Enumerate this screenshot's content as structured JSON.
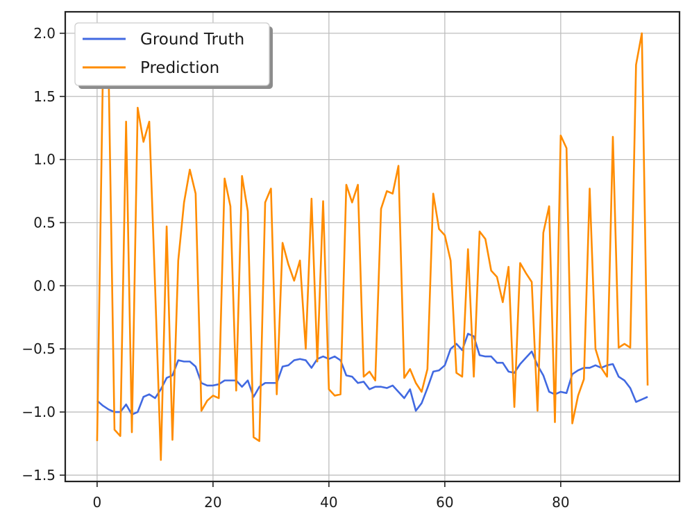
{
  "chart_data": {
    "type": "line",
    "title": "",
    "xlabel": "",
    "ylabel": "",
    "xlim": [
      -5.5,
      100.5
    ],
    "ylim": [
      -1.55,
      2.17
    ],
    "grid": true,
    "legend_position": "top-left",
    "x_ticks": [
      0,
      20,
      40,
      60,
      80
    ],
    "y_ticks": [
      -1.5,
      -1.0,
      -0.5,
      0.0,
      0.5,
      1.0,
      1.5,
      2.0
    ],
    "x_tick_labels": [
      "0",
      "20",
      "40",
      "60",
      "80"
    ],
    "y_tick_labels": [
      "−1.5",
      "−1.0",
      "−0.5",
      "0.0",
      "0.5",
      "1.0",
      "1.5",
      "2.0"
    ],
    "series": [
      {
        "name": "Ground Truth",
        "color": "#4169E1",
        "values": [
          -0.91,
          -0.95,
          -0.98,
          -1.0,
          -1.0,
          -0.94,
          -1.02,
          -1.0,
          -0.88,
          -0.86,
          -0.89,
          -0.82,
          -0.73,
          -0.71,
          -0.59,
          -0.6,
          -0.6,
          -0.64,
          -0.77,
          -0.79,
          -0.79,
          -0.78,
          -0.75,
          -0.75,
          -0.75,
          -0.8,
          -0.75,
          -0.88,
          -0.8,
          -0.77,
          -0.77,
          -0.77,
          -0.64,
          -0.63,
          -0.59,
          -0.58,
          -0.59,
          -0.65,
          -0.58,
          -0.56,
          -0.58,
          -0.56,
          -0.59,
          -0.71,
          -0.72,
          -0.77,
          -0.76,
          -0.82,
          -0.8,
          -0.8,
          -0.81,
          -0.79,
          -0.84,
          -0.89,
          -0.82,
          -0.99,
          -0.93,
          -0.81,
          -0.68,
          -0.67,
          -0.63,
          -0.5,
          -0.46,
          -0.51,
          -0.38,
          -0.4,
          -0.55,
          -0.56,
          -0.56,
          -0.61,
          -0.61,
          -0.68,
          -0.69,
          -0.62,
          -0.57,
          -0.52,
          -0.63,
          -0.71,
          -0.84,
          -0.86,
          -0.84,
          -0.85,
          -0.7,
          -0.67,
          -0.65,
          -0.65,
          -0.63,
          -0.65,
          -0.63,
          -0.62,
          -0.72,
          -0.75,
          -0.81,
          -0.92,
          -0.9,
          -0.88
        ]
      },
      {
        "name": "Prediction",
        "color": "#FF8C00",
        "values": [
          -1.23,
          1.7,
          1.65,
          -1.14,
          -1.19,
          1.3,
          -1.16,
          1.41,
          1.14,
          1.3,
          0.0,
          -1.38,
          0.47,
          -1.22,
          0.2,
          0.66,
          0.92,
          0.73,
          -0.99,
          -0.91,
          -0.87,
          -0.89,
          0.85,
          0.63,
          -0.83,
          0.87,
          0.59,
          -1.2,
          -1.23,
          0.66,
          0.77,
          -0.86,
          0.34,
          0.17,
          0.04,
          0.2,
          -0.5,
          0.69,
          -0.6,
          0.67,
          -0.82,
          -0.87,
          -0.86,
          0.8,
          0.66,
          0.8,
          -0.72,
          -0.68,
          -0.75,
          0.61,
          0.75,
          0.73,
          0.95,
          -0.73,
          -0.66,
          -0.77,
          -0.84,
          -0.66,
          0.73,
          0.45,
          0.4,
          0.2,
          -0.69,
          -0.72,
          0.29,
          -0.72,
          0.43,
          0.37,
          0.12,
          0.07,
          -0.13,
          0.15,
          -0.96,
          0.18,
          0.1,
          0.03,
          -0.99,
          0.42,
          0.63,
          -1.08,
          1.19,
          1.09,
          -1.09,
          -0.87,
          -0.74,
          0.77,
          -0.5,
          -0.65,
          -0.72,
          1.18,
          -0.49,
          -0.46,
          -0.49,
          1.75,
          2.0,
          -0.79
        ]
      }
    ]
  }
}
